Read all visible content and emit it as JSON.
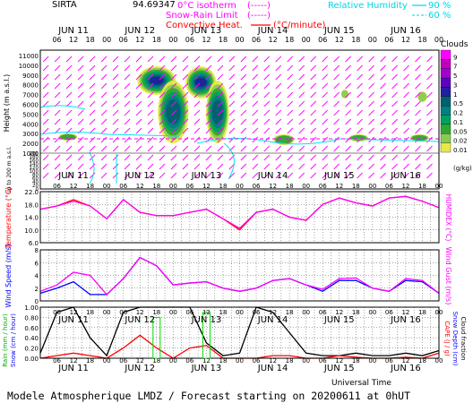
{
  "header": {
    "station": "SIRTA",
    "coords": "94.69347",
    "legend_isotherm": "0°C isotherm",
    "legend_isotherm_sym": "(-----)",
    "legend_snowrain": "Snow-Rain Limit",
    "legend_snowrain_sym": "(-----)",
    "legend_convective": "Convective Heat.",
    "legend_convective_unit": "(°C/minute)",
    "legend_rh": "Relative Humidity",
    "legend_rh_90": "90 %",
    "legend_rh_60": "60 %"
  },
  "days": [
    "JUN 11",
    "JUN 12",
    "JUN 13",
    "JUN 14",
    "JUN 15",
    "JUN 16"
  ],
  "hour_ticks": [
    "06",
    "12",
    "18",
    "00"
  ],
  "footer": {
    "title": "Modele Atmospherique LMDZ / Forecast starting on 20200611 at 0hUT",
    "xaxis": "Universal Time"
  },
  "chart_data": [
    {
      "type": "heatmap",
      "name": "clouds",
      "ylabel": "Height (m a.s.l.)",
      "ylabel_low": "Up to 200 m a.s.l.",
      "y_ticks_upper": [
        1000,
        2000,
        3000,
        4000,
        5000,
        6000,
        7000,
        8000,
        9000,
        10000,
        11000
      ],
      "y_ticks_lower": [
        0,
        20,
        40,
        60,
        80,
        100,
        120,
        140,
        160,
        180,
        200
      ],
      "colorbar_title": "Clouds",
      "colorbar_unit": "(g/kg)",
      "colorbar_levels": [
        "9",
        "7",
        "5",
        "3",
        "1",
        "0.5",
        "0.2",
        "0.1",
        "0.05",
        "0.02",
        "0.01"
      ],
      "colorbar_colors": [
        "#ff00ff",
        "#c000c0",
        "#a000d0",
        "#6000c0",
        "#2020a0",
        "#006070",
        "#008080",
        "#00a060",
        "#30a830",
        "#88cc50",
        "#e8e848"
      ],
      "colors": {
        "wind_arrow": "#ff00ff",
        "rh": "#00e5ee",
        "isotherm": "#ff00ff"
      }
    },
    {
      "type": "line",
      "name": "temperature",
      "ylabel": "Temperature (°C)",
      "ylabel_right": "HUMIDEX (°C)",
      "y_ticks": [
        "6.0",
        "10.0",
        "14.0",
        "18.0",
        "22.0"
      ],
      "ylim": [
        6,
        22
      ],
      "x_hours": [
        0,
        6,
        12,
        18,
        24,
        30,
        36,
        42,
        48,
        54,
        60,
        66,
        72,
        78,
        84,
        90,
        96,
        102,
        108,
        114,
        120,
        126,
        132,
        138,
        144
      ],
      "series": [
        {
          "color": "#ff0000",
          "values": [
            16.5,
            17.5,
            19.5,
            17.5,
            13.5,
            19.5,
            15.5,
            14.5,
            14.5,
            15.5,
            16.5,
            13.5,
            10.0,
            15.5,
            16.5,
            14.0,
            13.0,
            18.0,
            20.0,
            18.5,
            17.5,
            20.0,
            20.5,
            19.0,
            17.0
          ]
        },
        {
          "color": "#ff00ff",
          "values": [
            16.5,
            17.5,
            19.0,
            17.5,
            13.5,
            19.5,
            15.5,
            14.5,
            14.5,
            15.5,
            16.5,
            13.5,
            10.5,
            15.5,
            16.5,
            14.0,
            13.0,
            18.0,
            20.0,
            18.5,
            17.5,
            20.0,
            20.5,
            19.0,
            17.0
          ]
        }
      ]
    },
    {
      "type": "line",
      "name": "wind",
      "ylabel": "Wind Speed (m/s)",
      "ylabel_right": "Wind Gust (m/s)",
      "y_ticks": [
        "0",
        "2",
        "4",
        "6",
        "8"
      ],
      "ylim": [
        0,
        8
      ],
      "x_hours": [
        0,
        6,
        12,
        18,
        24,
        30,
        36,
        42,
        48,
        54,
        60,
        66,
        72,
        78,
        84,
        90,
        96,
        102,
        108,
        114,
        120,
        126,
        132,
        138,
        144
      ],
      "series": [
        {
          "color": "#0000ff",
          "values": [
            1.2,
            2.0,
            3.0,
            1.0,
            1.0,
            3.5,
            6.8,
            5.5,
            2.5,
            2.8,
            3.0,
            2.0,
            1.5,
            2.0,
            3.2,
            3.5,
            2.5,
            1.5,
            3.2,
            3.2,
            2.0,
            1.5,
            3.2,
            3.0,
            1.2
          ]
        },
        {
          "color": "#ff00ff",
          "values": [
            1.5,
            2.5,
            4.5,
            4.0,
            1.0,
            3.5,
            6.8,
            5.5,
            2.5,
            2.8,
            3.0,
            2.0,
            1.5,
            2.0,
            3.2,
            3.5,
            2.5,
            1.8,
            3.5,
            3.6,
            2.0,
            1.5,
            3.5,
            3.2,
            1.2
          ]
        }
      ]
    },
    {
      "type": "line",
      "name": "precip",
      "ylabel": "Rain (mm / hour)",
      "ylabel2": "Snow (cm / hour)",
      "ylabel_right": "CAPE (J / g)",
      "ylabel_right2": "Snow Depth (cm)",
      "ylabel_right3": "Cloud fraction",
      "y_ticks": [
        "0.00",
        "0.20",
        "0.40",
        "0.60",
        "0.80",
        "1.00"
      ],
      "ylim": [
        0,
        1
      ],
      "x_hours": [
        0,
        6,
        12,
        18,
        24,
        30,
        36,
        42,
        48,
        54,
        60,
        66,
        72,
        78,
        84,
        90,
        96,
        102,
        108,
        114,
        120,
        126,
        132,
        138,
        144
      ],
      "series": [
        {
          "name": "cloud",
          "color": "#000000",
          "values": [
            0.1,
            0.9,
            1.0,
            0.4,
            0.05,
            0.9,
            1.0,
            1.0,
            1.0,
            1.0,
            0.3,
            0.05,
            0.1,
            1.0,
            0.9,
            0.5,
            0.1,
            0.05,
            0.05,
            0.1,
            0.05,
            0.05,
            0.1,
            0.05,
            0.15
          ]
        },
        {
          "name": "cape",
          "color": "#ff0000",
          "values": [
            0.0,
            0.05,
            0.1,
            0.05,
            0.0,
            0.2,
            0.45,
            0.2,
            0.0,
            0.2,
            0.25,
            0.0,
            0.0,
            0.0,
            0.05,
            0.05,
            0.0,
            0.0,
            0.05,
            0.02,
            0.0,
            0.0,
            0.02,
            0.0,
            0.1
          ]
        },
        {
          "name": "rain",
          "color": "#00dd00",
          "values": [
            0,
            0,
            0,
            0,
            0,
            0,
            0,
            0.8,
            0,
            0,
            0.9,
            0,
            0,
            0,
            0,
            0,
            0,
            0,
            0,
            0,
            0,
            0,
            0,
            0,
            0
          ]
        }
      ]
    }
  ]
}
